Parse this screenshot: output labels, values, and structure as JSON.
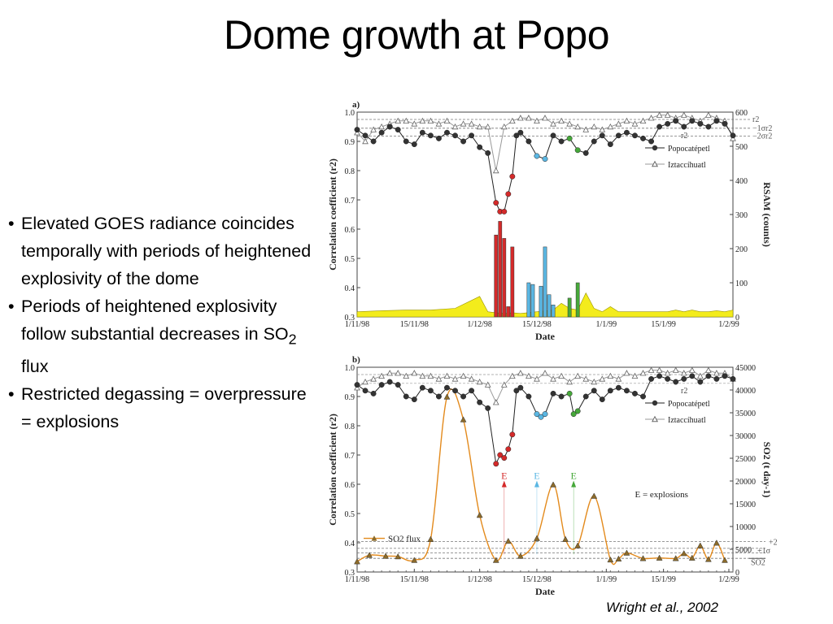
{
  "slide": {
    "title": "Dome growth at Popo",
    "bullets": [
      {
        "text": "Elevated GOES radiance coincides temporally with periods of heightened explosivity of the dome",
        "sub": ""
      },
      {
        "text": "Periods of heightened explosivity follow substantial decreases in SO",
        "sub": "2",
        "tail": " flux"
      },
      {
        "text": "Restricted degassing = overpressure = explosions",
        "sub": ""
      }
    ],
    "citation": "Wright et al., 2002"
  },
  "chart_data": [
    {
      "type": "line",
      "panel_label": "a)",
      "xlabel": "Date",
      "ylabel": "Correlation coefficient (r2)",
      "ylabel_right": "RSAM (counts)",
      "x_ticks": [
        "1/11/98",
        "15/11/98",
        "1/12/98",
        "15/12/98",
        "1/1/99",
        "15/1/99",
        "1/2/99"
      ],
      "ylim": [
        0.3,
        1.0
      ],
      "y_ticks": [
        "0.3",
        "0.4",
        "0.5",
        "0.6",
        "0.7",
        "0.8",
        "0.9",
        "1.0"
      ],
      "y2lim": [
        0,
        600
      ],
      "y2_ticks": [
        "0",
        "100",
        "200",
        "300",
        "400",
        "500",
        "600"
      ],
      "legend_title": "r2",
      "legend": [
        "Popocatépetl",
        "Iztaccíhuatl"
      ],
      "sigma_labels": [
        "r2",
        "−1σr2",
        "−2σr2"
      ],
      "series": [
        {
          "name": "Popocatépetl",
          "x": [
            0,
            2,
            4,
            6,
            8,
            10,
            12,
            14,
            16,
            18,
            20,
            22,
            24,
            26,
            28,
            30,
            32,
            34,
            35,
            36,
            37,
            38,
            39,
            40,
            42,
            44,
            46,
            48,
            50,
            52,
            54,
            56,
            58,
            60,
            62,
            64,
            66,
            68,
            70,
            72,
            74,
            76,
            78,
            80,
            82,
            84,
            86,
            88,
            90,
            92
          ],
          "y": [
            0.94,
            0.92,
            0.9,
            0.93,
            0.95,
            0.94,
            0.9,
            0.89,
            0.93,
            0.92,
            0.91,
            0.93,
            0.92,
            0.9,
            0.92,
            0.88,
            0.86,
            0.69,
            0.66,
            0.66,
            0.72,
            0.78,
            0.92,
            0.93,
            0.9,
            0.85,
            0.84,
            0.92,
            0.9,
            0.91,
            0.87,
            0.86,
            0.9,
            0.92,
            0.89,
            0.92,
            0.93,
            0.92,
            0.91,
            0.9,
            0.95,
            0.96,
            0.97,
            0.95,
            0.97,
            0.96,
            0.95,
            0.97,
            0.96,
            0.92
          ]
        },
        {
          "name": "Iztaccíhuatl",
          "x": [
            0,
            2,
            4,
            6,
            8,
            10,
            12,
            14,
            16,
            18,
            20,
            22,
            24,
            26,
            28,
            30,
            32,
            34,
            36,
            38,
            40,
            42,
            44,
            46,
            48,
            50,
            52,
            54,
            56,
            58,
            60,
            62,
            64,
            66,
            68,
            70,
            72,
            74,
            76,
            78,
            80,
            82,
            84,
            86,
            88,
            90,
            92
          ],
          "y": [
            0.93,
            0.9,
            0.94,
            0.95,
            0.96,
            0.97,
            0.97,
            0.96,
            0.97,
            0.97,
            0.96,
            0.97,
            0.95,
            0.96,
            0.96,
            0.95,
            0.95,
            0.8,
            0.95,
            0.97,
            0.98,
            0.98,
            0.97,
            0.98,
            0.96,
            0.97,
            0.96,
            0.95,
            0.94,
            0.95,
            0.94,
            0.95,
            0.96,
            0.97,
            0.96,
            0.97,
            0.98,
            0.99,
            0.99,
            0.98,
            0.99,
            0.98,
            0.97,
            0.99,
            0.98,
            0.97,
            0.91
          ]
        },
        {
          "name": "RSAM",
          "x": [
            0,
            6,
            12,
            18,
            24,
            30,
            32,
            34,
            36,
            38,
            40,
            44,
            48,
            50,
            52,
            54,
            56,
            58,
            60,
            62,
            64,
            70,
            76,
            78,
            80,
            82,
            84,
            86,
            88,
            90,
            92
          ],
          "y": [
            15,
            18,
            20,
            20,
            25,
            60,
            15,
            12,
            10,
            12,
            10,
            15,
            20,
            40,
            25,
            20,
            70,
            25,
            15,
            30,
            15,
            15,
            15,
            20,
            15,
            20,
            15,
            15,
            18,
            15,
            20
          ]
        },
        {
          "name": "RSAM bars",
          "x": [
            34,
            35,
            36,
            37,
            38,
            42,
            43,
            45,
            46,
            47,
            48,
            52,
            54
          ],
          "y": [
            240,
            280,
            230,
            30,
            205,
            100,
            95,
            90,
            205,
            65,
            35,
            55,
            100
          ],
          "colors": [
            "#d42a2a",
            "#d42a2a",
            "#d42a2a",
            "#d42a2a",
            "#d42a2a",
            "#5bb7e3",
            "#5bb7e3",
            "#5bb7e3",
            "#5bb7e3",
            "#5bb7e3",
            "#5bb7e3",
            "#46a83a",
            "#46a83a"
          ]
        }
      ]
    },
    {
      "type": "line",
      "panel_label": "b)",
      "xlabel": "Date",
      "ylabel": "Correlation coefficient (r2)",
      "ylabel_right": "SO2 (t day-1)",
      "x_ticks": [
        "1/11/98",
        "15/11/98",
        "1/12/98",
        "15/12/98",
        "1/1/99",
        "15/1/99",
        "1/2/99"
      ],
      "ylim": [
        0.3,
        1.0
      ],
      "y_ticks": [
        "0.3",
        "0.4",
        "0.5",
        "0.6",
        "0.7",
        "0.8",
        "0.9",
        "1.0"
      ],
      "y2lim": [
        0,
        45000
      ],
      "y2_ticks": [
        "0",
        "5000",
        "10000",
        "15000",
        "20000",
        "25000",
        "30000",
        "35000",
        "40000",
        "45000"
      ],
      "legend_title": "r2",
      "legend": [
        "Popocatépetl",
        "Iztaccíhuatl"
      ],
      "so2_legend": "SO2 flux",
      "explosions_label": "E = explosions",
      "explosion_marker": "E",
      "explosion_colors": [
        "#d42a2a",
        "#5bb7e3",
        "#46a83a"
      ],
      "explosion_x": [
        36,
        44,
        53
      ],
      "sigma_labels": [
        "+2σ",
        "+1σ",
        "SO2"
      ],
      "series": [
        {
          "name": "Popocatépetl",
          "x": [
            0,
            2,
            4,
            6,
            8,
            10,
            12,
            14,
            16,
            18,
            20,
            22,
            24,
            26,
            28,
            30,
            32,
            34,
            35,
            36,
            37,
            38,
            39,
            40,
            42,
            44,
            45,
            46,
            48,
            50,
            52,
            53,
            54,
            56,
            58,
            60,
            62,
            64,
            66,
            68,
            70,
            72,
            74,
            76,
            78,
            80,
            82,
            84,
            86,
            88,
            90,
            92
          ],
          "y": [
            0.94,
            0.92,
            0.91,
            0.94,
            0.95,
            0.94,
            0.9,
            0.89,
            0.93,
            0.92,
            0.9,
            0.93,
            0.92,
            0.9,
            0.92,
            0.88,
            0.86,
            0.67,
            0.7,
            0.69,
            0.72,
            0.77,
            0.92,
            0.93,
            0.9,
            0.84,
            0.83,
            0.84,
            0.91,
            0.9,
            0.91,
            0.84,
            0.85,
            0.9,
            0.92,
            0.89,
            0.92,
            0.93,
            0.92,
            0.91,
            0.9,
            0.96,
            0.97,
            0.96,
            0.95,
            0.96,
            0.97,
            0.95,
            0.97,
            0.96,
            0.97,
            0.96
          ]
        },
        {
          "name": "Iztaccíhuatl",
          "x": [
            0,
            2,
            4,
            6,
            8,
            10,
            12,
            14,
            16,
            18,
            20,
            22,
            24,
            26,
            28,
            30,
            32,
            34,
            36,
            38,
            40,
            42,
            44,
            46,
            48,
            50,
            52,
            54,
            56,
            58,
            60,
            62,
            64,
            66,
            68,
            70,
            72,
            74,
            76,
            78,
            80,
            82,
            84,
            86,
            88,
            90,
            92
          ],
          "y": [
            0.93,
            0.95,
            0.96,
            0.97,
            0.98,
            0.98,
            0.97,
            0.98,
            0.97,
            0.97,
            0.96,
            0.97,
            0.96,
            0.97,
            0.96,
            0.95,
            0.94,
            0.88,
            0.94,
            0.97,
            0.98,
            0.97,
            0.96,
            0.98,
            0.96,
            0.97,
            0.95,
            0.97,
            0.96,
            0.95,
            0.96,
            0.97,
            0.96,
            0.98,
            0.97,
            0.98,
            0.99,
            0.99,
            0.98,
            0.99,
            0.98,
            0.99,
            0.97,
            0.99,
            0.98,
            0.98,
            0.96
          ]
        },
        {
          "name": "SO2 flux",
          "x": [
            0,
            3,
            7,
            10,
            14,
            18,
            22,
            26,
            30,
            34,
            37,
            40,
            44,
            48,
            51,
            54,
            58,
            62,
            64,
            66,
            70,
            74,
            78,
            80,
            82,
            84,
            86,
            88,
            90
          ],
          "y": [
            2300,
            3700,
            3500,
            3400,
            2600,
            7200,
            38500,
            33500,
            12500,
            2600,
            6800,
            3500,
            7400,
            19200,
            7200,
            5800,
            16700,
            2700,
            2900,
            4200,
            3000,
            3100,
            3000,
            4100,
            3100,
            5800,
            2800,
            6400,
            2600
          ]
        }
      ]
    }
  ]
}
